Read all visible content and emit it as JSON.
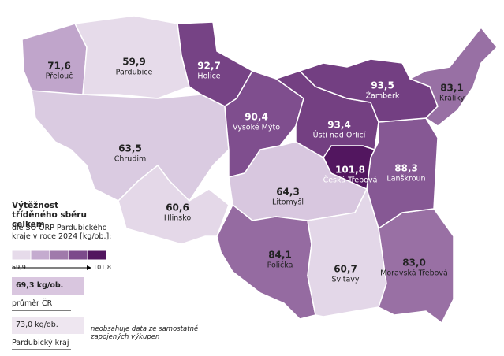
{
  "legend": {
    "title": "Výtěžnost tříděného sběru celkem",
    "subtitle": "dle SO ORP Pardubického kraje v roce 2024 [kg/ob.]:",
    "min": {
      "value": 59.9,
      "label": "59,9"
    },
    "max": {
      "value": 101.8,
      "label": "101,8"
    },
    "colors": [
      "#e6dbea",
      "#c4abcf",
      "#a07aab",
      "#7c4a8b",
      "#52165f"
    ]
  },
  "regions": [
    {
      "name": "Přelouč",
      "value": 71.6,
      "label": "71,6"
    },
    {
      "name": "Pardubice",
      "value": 59.9,
      "label": "59,9"
    },
    {
      "name": "Holice",
      "value": 92.7,
      "label": "92,7"
    },
    {
      "name": "Chrudim",
      "value": 63.5,
      "label": "63,5"
    },
    {
      "name": "Hlinsko",
      "value": 60.6,
      "label": "60,6"
    },
    {
      "name": "Vysoké Mýto",
      "value": 90.4,
      "label": "90,4"
    },
    {
      "name": "Litomyšl",
      "value": 64.3,
      "label": "64,3"
    },
    {
      "name": "Polička",
      "value": 84.1,
      "label": "84,1"
    },
    {
      "name": "Svitavy",
      "value": 60.7,
      "label": "60,7"
    },
    {
      "name": "Moravská Třebová",
      "value": 83.0,
      "label": "83,0"
    },
    {
      "name": "Lanškroun",
      "value": 88.3,
      "label": "88,3"
    },
    {
      "name": "Česká Třebová",
      "value": 101.8,
      "label": "101,8"
    },
    {
      "name": "Ústí nad Orlicí",
      "value": 93.4,
      "label": "93,4"
    },
    {
      "name": "Žamberk",
      "value": 93.5,
      "label": "93,5"
    },
    {
      "name": "Králíky",
      "value": 83.1,
      "label": "83,1"
    }
  ],
  "reference": [
    {
      "value": 69.3,
      "label": "69,3 kg/ob.",
      "name": "průměr ČR",
      "color": "#d9c6df"
    },
    {
      "value": 73.0,
      "label": "73,0 kg/ob.",
      "name": "Pardubický kraj",
      "color": "#eee6f0"
    }
  ],
  "note": "neobsahuje data ze samostatně zapojených výkupen"
}
